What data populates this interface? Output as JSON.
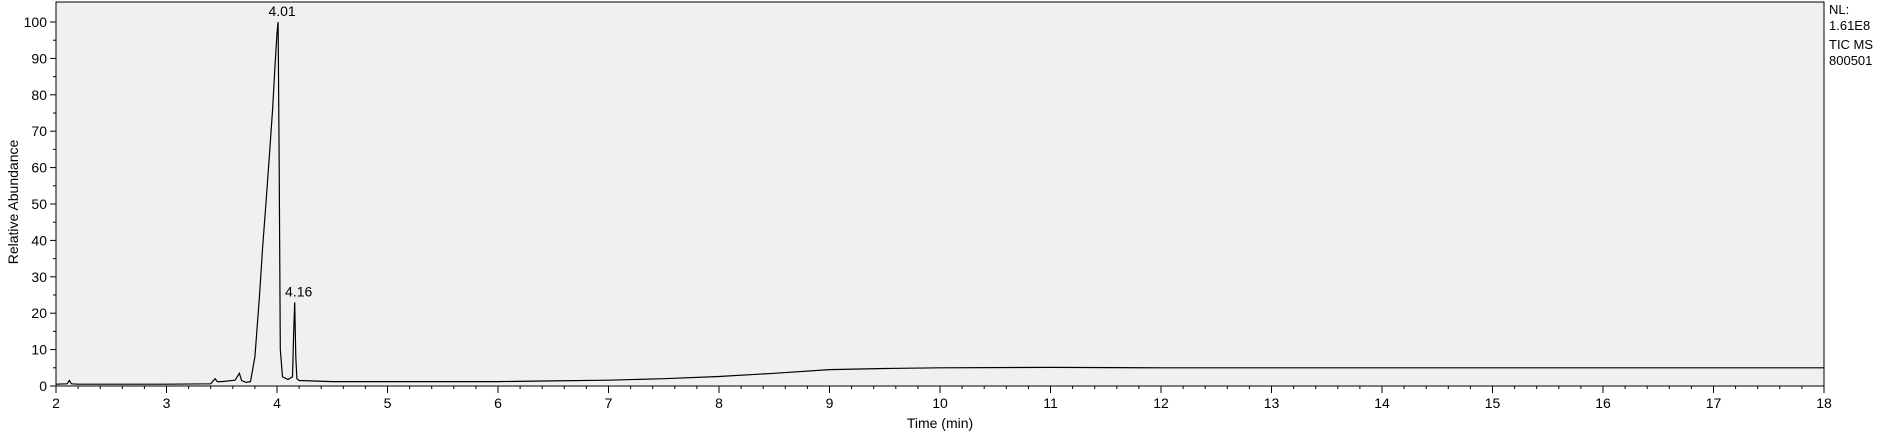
{
  "info": {
    "line1": "NL:",
    "line2": "1.61E8",
    "line3": "TIC  MS",
    "line4": "800501"
  },
  "chart_data": {
    "type": "line",
    "title": "",
    "xlabel": "Time (min)",
    "ylabel": "Relative Abundance",
    "xlim": [
      2,
      18
    ],
    "ylim": [
      0,
      100
    ],
    "xticks": [
      2,
      3,
      4,
      5,
      6,
      7,
      8,
      9,
      10,
      11,
      12,
      13,
      14,
      15,
      16,
      17,
      18
    ],
    "yticks": [
      0,
      10,
      20,
      30,
      40,
      50,
      60,
      70,
      80,
      90,
      100
    ],
    "grid": false,
    "background": "#f0f0f0",
    "line_color": "#000000",
    "peaks": [
      {
        "x": 4.01,
        "y": 100,
        "label": "4.01"
      },
      {
        "x": 4.16,
        "y": 23,
        "label": "4.16"
      }
    ],
    "series": [
      {
        "x": [
          2.0,
          2.1,
          2.12,
          2.14,
          2.2,
          3.0,
          3.4,
          3.44,
          3.46,
          3.5,
          3.62,
          3.66,
          3.68,
          3.72,
          3.76,
          3.8,
          3.84,
          3.87,
          3.9,
          3.93,
          3.96,
          3.98,
          4.0,
          4.01,
          4.02,
          4.03,
          4.05,
          4.1,
          4.14,
          4.15,
          4.16,
          4.17,
          4.18,
          4.2,
          4.5,
          5.0,
          6.0,
          6.5,
          7.0,
          7.5,
          8.0,
          8.5,
          9.0,
          9.5,
          10.0,
          11.0,
          12.0,
          14.0,
          16.0,
          18.0
        ],
        "y": [
          0.5,
          0.6,
          1.5,
          0.6,
          0.5,
          0.5,
          0.6,
          2.0,
          1.2,
          1.2,
          1.6,
          3.5,
          1.5,
          1.0,
          1.2,
          8.0,
          24.0,
          38.0,
          50.0,
          63.0,
          76.0,
          87.0,
          97.0,
          100.0,
          60.0,
          10.0,
          2.5,
          1.8,
          2.5,
          14.0,
          23.0,
          8.0,
          2.0,
          1.5,
          1.2,
          1.2,
          1.2,
          1.4,
          1.6,
          2.0,
          2.6,
          3.5,
          4.5,
          4.8,
          5.0,
          5.1,
          5.0,
          5.0,
          5.0,
          5.0
        ]
      }
    ]
  }
}
